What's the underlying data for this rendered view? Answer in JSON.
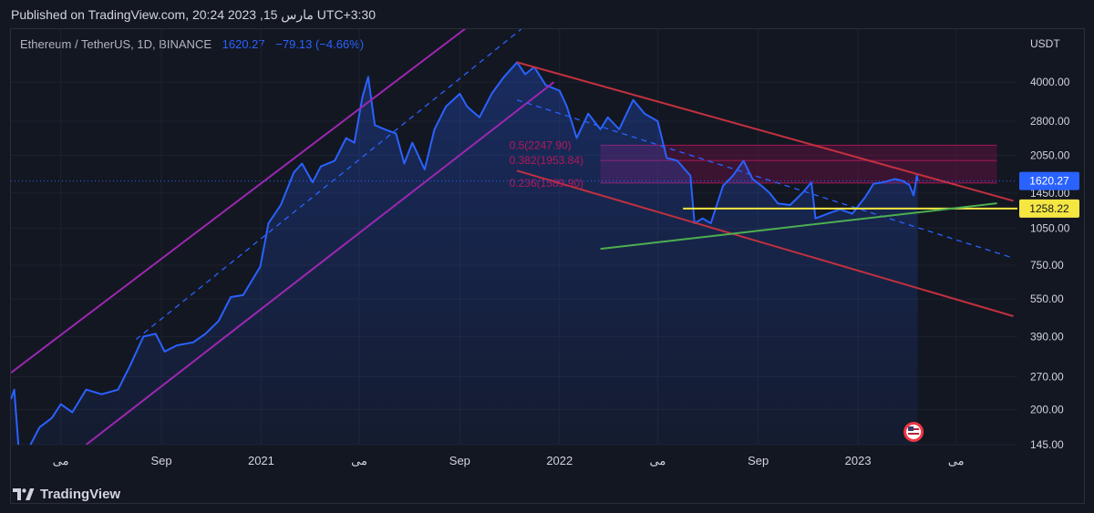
{
  "header": {
    "published": "Published on TradingView.com, 20:24 2023 ,15 مارس UTC+3:30",
    "symbol": "Ethereum / TetherUS, 1D, BINANCE",
    "last_price": "1620.27",
    "change": "−79.13 (−4.66%)"
  },
  "brand": {
    "name": "TradingView",
    "icon": "tradingview-logo-icon"
  },
  "colors": {
    "background": "#131722",
    "price_line": "#2962ff",
    "channel_up": "#9c27b0",
    "channel_down": "#c2303f",
    "support": "#f5e642",
    "trendline": "#4caf50",
    "fib": "#880e4f"
  },
  "chart_data": {
    "type": "area",
    "title": "Ethereum / TetherUS, 1D, BINANCE",
    "ylabel": "USDT",
    "yscale": "log",
    "ylim": [
      145,
      6500
    ],
    "y_ticks": [
      "4000.00",
      "2800.00",
      "2050.00",
      "1450.00",
      "1050.00",
      "750.00",
      "550.00",
      "390.00",
      "270.00",
      "200.00",
      "145.00"
    ],
    "y_tick_values": [
      4000,
      2800,
      2050,
      1450,
      1050,
      750,
      550,
      390,
      270,
      200,
      145
    ],
    "x_ticks": [
      "مى",
      "Sep",
      "2021",
      "مى",
      "Sep",
      "2022",
      "مى",
      "Sep",
      "2023",
      "مى"
    ],
    "x_tick_dates": [
      "2020-05-01",
      "2020-09-01",
      "2021-01-01",
      "2021-05-01",
      "2021-09-01",
      "2022-01-01",
      "2022-05-01",
      "2022-09-01",
      "2023-01-01",
      "2023-05-01"
    ],
    "x_range": [
      "2020-03-01",
      "2023-07-15"
    ],
    "series": [
      {
        "name": "ETHUSDT",
        "points": [
          [
            "2020-03-01",
            220
          ],
          [
            "2020-03-05",
            240
          ],
          [
            "2020-03-12",
            120
          ],
          [
            "2020-03-20",
            135
          ],
          [
            "2020-04-05",
            170
          ],
          [
            "2020-04-20",
            185
          ],
          [
            "2020-05-01",
            210
          ],
          [
            "2020-05-15",
            195
          ],
          [
            "2020-06-01",
            240
          ],
          [
            "2020-06-20",
            230
          ],
          [
            "2020-07-10",
            240
          ],
          [
            "2020-07-25",
            300
          ],
          [
            "2020-08-10",
            390
          ],
          [
            "2020-08-25",
            400
          ],
          [
            "2020-09-05",
            340
          ],
          [
            "2020-09-20",
            360
          ],
          [
            "2020-10-10",
            370
          ],
          [
            "2020-10-25",
            400
          ],
          [
            "2020-11-10",
            450
          ],
          [
            "2020-11-25",
            560
          ],
          [
            "2020-12-10",
            570
          ],
          [
            "2020-12-31",
            740
          ],
          [
            "2021-01-10",
            1100
          ],
          [
            "2021-01-25",
            1300
          ],
          [
            "2021-02-10",
            1750
          ],
          [
            "2021-02-20",
            1900
          ],
          [
            "2021-03-05",
            1600
          ],
          [
            "2021-03-15",
            1850
          ],
          [
            "2021-04-01",
            1950
          ],
          [
            "2021-04-15",
            2400
          ],
          [
            "2021-04-25",
            2300
          ],
          [
            "2021-05-05",
            3500
          ],
          [
            "2021-05-12",
            4200
          ],
          [
            "2021-05-20",
            2700
          ],
          [
            "2021-06-01",
            2600
          ],
          [
            "2021-06-15",
            2500
          ],
          [
            "2021-06-25",
            1900
          ],
          [
            "2021-07-05",
            2300
          ],
          [
            "2021-07-20",
            1800
          ],
          [
            "2021-08-01",
            2600
          ],
          [
            "2021-08-15",
            3200
          ],
          [
            "2021-09-01",
            3600
          ],
          [
            "2021-09-10",
            3200
          ],
          [
            "2021-09-25",
            2900
          ],
          [
            "2021-10-10",
            3600
          ],
          [
            "2021-10-25",
            4200
          ],
          [
            "2021-11-10",
            4800
          ],
          [
            "2021-11-20",
            4300
          ],
          [
            "2021-12-01",
            4600
          ],
          [
            "2021-12-15",
            3900
          ],
          [
            "2022-01-01",
            3700
          ],
          [
            "2022-01-10",
            3200
          ],
          [
            "2022-01-22",
            2400
          ],
          [
            "2022-02-05",
            3000
          ],
          [
            "2022-02-20",
            2600
          ],
          [
            "2022-03-01",
            2900
          ],
          [
            "2022-03-15",
            2600
          ],
          [
            "2022-04-01",
            3400
          ],
          [
            "2022-04-15",
            3000
          ],
          [
            "2022-05-01",
            2800
          ],
          [
            "2022-05-12",
            2000
          ],
          [
            "2022-05-25",
            1950
          ],
          [
            "2022-06-10",
            1700
          ],
          [
            "2022-06-15",
            1100
          ],
          [
            "2022-06-25",
            1150
          ],
          [
            "2022-07-05",
            1100
          ],
          [
            "2022-07-20",
            1550
          ],
          [
            "2022-08-01",
            1700
          ],
          [
            "2022-08-14",
            1950
          ],
          [
            "2022-08-25",
            1650
          ],
          [
            "2022-09-05",
            1550
          ],
          [
            "2022-09-15",
            1450
          ],
          [
            "2022-09-25",
            1320
          ],
          [
            "2022-10-10",
            1300
          ],
          [
            "2022-10-25",
            1450
          ],
          [
            "2022-11-05",
            1600
          ],
          [
            "2022-11-10",
            1150
          ],
          [
            "2022-11-25",
            1200
          ],
          [
            "2022-12-10",
            1250
          ],
          [
            "2022-12-25",
            1200
          ],
          [
            "2023-01-10",
            1400
          ],
          [
            "2023-01-20",
            1580
          ],
          [
            "2023-02-01",
            1600
          ],
          [
            "2023-02-15",
            1650
          ],
          [
            "2023-02-25",
            1620
          ],
          [
            "2023-03-05",
            1560
          ],
          [
            "2023-03-10",
            1420
          ],
          [
            "2023-03-14",
            1700
          ],
          [
            "2023-03-15",
            1620.27
          ]
        ]
      }
    ],
    "price_labels": [
      {
        "label": "1620.27",
        "value": 1620.27,
        "color": "#2962ff"
      },
      {
        "label": "1258.22",
        "value": 1258.22,
        "color": "#f5e642"
      }
    ],
    "fibonacci": [
      {
        "label": "0.5(2247.90)",
        "value": 2247.9
      },
      {
        "label": "0.382(1953.84)",
        "value": 1953.84
      },
      {
        "label": "0.236(1589.90)",
        "value": 1589.9
      }
    ],
    "lines": [
      {
        "name": "channel-up-upper",
        "color": "#9c27b0",
        "style": "solid",
        "from": [
          "2020-03-01",
          280
        ],
        "to": [
          "2021-09-20",
          7000
        ]
      },
      {
        "name": "channel-up-mid",
        "color": "#2962ff",
        "style": "dashed",
        "from": [
          "2020-08-01",
          380
        ],
        "to": [
          "2021-11-15",
          6500
        ]
      },
      {
        "name": "channel-up-lower",
        "color": "#9c27b0",
        "style": "solid",
        "from": [
          "2020-06-01",
          145
        ],
        "to": [
          "2021-12-25",
          4000
        ]
      },
      {
        "name": "channel-down-upper",
        "color": "#c2303f",
        "style": "solid",
        "from": [
          "2021-11-10",
          4800
        ],
        "to": [
          "2023-07-10",
          1350
        ]
      },
      {
        "name": "channel-down-mid",
        "color": "#2962ff",
        "style": "dashed",
        "from": [
          "2021-11-10",
          3400
        ],
        "to": [
          "2023-07-10",
          800
        ]
      },
      {
        "name": "channel-down-lower",
        "color": "#c2303f",
        "style": "solid",
        "from": [
          "2021-11-10",
          1780
        ],
        "to": [
          "2023-07-10",
          470
        ]
      },
      {
        "name": "support-line",
        "color": "#f5e642",
        "style": "solid",
        "from": [
          "2022-06-01",
          1258.22
        ],
        "to": [
          "2023-07-15",
          1258.22
        ]
      },
      {
        "name": "rising-trendline",
        "color": "#4caf50",
        "style": "solid",
        "from": [
          "2022-02-20",
          870
        ],
        "to": [
          "2023-06-20",
          1320
        ]
      }
    ],
    "zone": {
      "name": "fib-zone",
      "from_date": "2022-02-20",
      "to_date": "2023-06-20",
      "top": 2247.9,
      "bottom": 1589.9,
      "color": "#880e4f"
    },
    "event_marker": {
      "date": "2023-03-10",
      "icon": "us-flag-icon"
    },
    "grid": true
  }
}
